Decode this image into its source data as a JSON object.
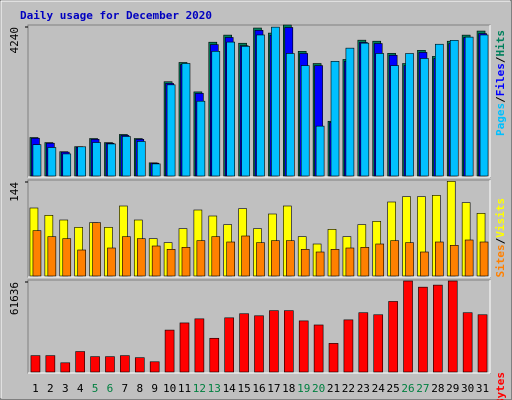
{
  "chart_data": {
    "type": "bar",
    "title": "Daily usage for December 2020",
    "categories": [
      "1",
      "2",
      "3",
      "4",
      "5",
      "6",
      "7",
      "8",
      "9",
      "10",
      "11",
      "12",
      "13",
      "14",
      "15",
      "16",
      "17",
      "18",
      "19",
      "20",
      "21",
      "22",
      "23",
      "24",
      "25",
      "26",
      "27",
      "28",
      "29",
      "30",
      "31"
    ],
    "category_colors": [
      "#000000",
      "#000000",
      "#000000",
      "#000000",
      "#008040",
      "#008040",
      "#000000",
      "#000000",
      "#000000",
      "#000000",
      "#000000",
      "#008040",
      "#008040",
      "#000000",
      "#000000",
      "#000000",
      "#000000",
      "#000000",
      "#008040",
      "#008040",
      "#000000",
      "#000000",
      "#000000",
      "#000000",
      "#000000",
      "#008040",
      "#008040",
      "#000000",
      "#000000",
      "#000000",
      "#000000"
    ],
    "legend_separator": "/",
    "panels": [
      {
        "ylim": [
          0,
          4240
        ],
        "yticks": [
          4240
        ],
        "series": [
          {
            "name": "Hits",
            "color": "#00805c",
            "values": [
              1081,
              939,
              683,
              825,
              1053,
              939,
              1167,
              1053,
              370,
              2647,
              3188,
              2362,
              3757,
              3956,
              3728,
              4155,
              4013,
              4240,
              3501,
              3159,
              1537,
              3273,
              3814,
              3785,
              3444,
              3159,
              3529,
              3358,
              3785,
              3956,
              4070
            ]
          },
          {
            "name": "Files",
            "color": "#0000ff",
            "values": [
              1060,
              920,
              670,
              810,
              1030,
              920,
              1140,
              1030,
              360,
              2600,
              3130,
              2320,
              3690,
              3890,
              3660,
              4090,
              3950,
              4170,
              3440,
              3100,
              1500,
              3220,
              3750,
              3720,
              3390,
              3100,
              3470,
              3300,
              3720,
              3890,
              4000
            ]
          },
          {
            "name": "Pages",
            "color": "#00c0ff",
            "values": [
              880,
              800,
              620,
              820,
              940,
              900,
              1110,
              970,
              340,
              2560,
              3160,
              2100,
              3500,
              3760,
              3640,
              3960,
              4180,
              3440,
              3100,
              1400,
              3220,
              3590,
              3730,
              3440,
              3100,
              3440,
              3300,
              3700,
              3810,
              3900,
              3960
            ]
          }
        ]
      },
      {
        "ylim": [
          0,
          144
        ],
        "yticks": [
          144
        ],
        "series": [
          {
            "name": "Visits",
            "color": "#ffff00",
            "values": [
              102,
              91,
              84,
              73,
              80,
              73,
              105,
              84,
              56,
              50,
              71,
              99,
              90,
              77,
              101,
              71,
              93,
              105,
              59,
              48,
              70,
              59,
              77,
              82,
              111,
              119,
              119,
              121,
              142,
              110,
              94
            ]
          },
          {
            "name": "Sites",
            "color": "#ff8000",
            "values": [
              68,
              59,
              56,
              39,
              80,
              42,
              59,
              56,
              45,
              40,
              43,
              53,
              59,
              51,
              60,
              50,
              53,
              53,
              40,
              36,
              40,
              42,
              43,
              48,
              53,
              50,
              36,
              51,
              46,
              54,
              51
            ]
          }
        ]
      },
      {
        "ylim": [
          0,
          61636
        ],
        "yticks": [
          61636
        ],
        "series": [
          {
            "name": "KBytes",
            "color": "#ff0000",
            "values": [
              10957,
              10957,
              6163,
              13696,
              10272,
              10272,
              10957,
              9587,
              6848,
              28077,
              32870,
              35610,
              22598,
              36294,
              39034,
              37664,
              41088,
              41088,
              34240,
              31501,
              19174,
              34925,
              39718,
              38349,
              47251,
              60947,
              56838,
              58208,
              60947,
              39718,
              38349
            ]
          }
        ]
      }
    ]
  }
}
